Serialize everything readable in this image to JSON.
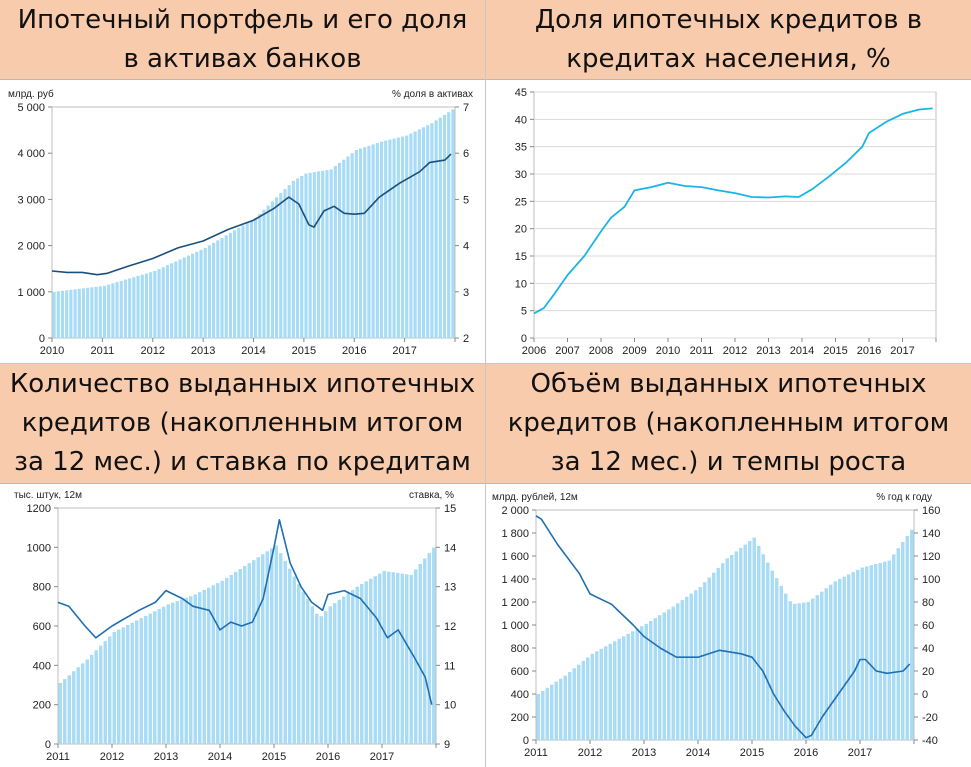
{
  "panels": {
    "p1": {
      "title": "Ипотечный портфель и его доля в активах банков"
    },
    "p2": {
      "title": "Доля ипотечных кредитов в кредитах населения, %"
    },
    "p3": {
      "title": "Количество выданных ипотечных кредитов (накопленным итогом за 12 мес.) и ставка по кредитам"
    },
    "p4": {
      "title": "Объём выданных ипотечных кредитов (накопленным итогом за 12 мес.) и темпы роста"
    }
  },
  "colors": {
    "bar": "#a8dcf4",
    "line_dark": "#1b4f7e",
    "line_mid": "#1f6fb2",
    "line_cyan": "#1ab5e6",
    "header_bg": "#f8cbad",
    "grid": "#d9d9d9"
  },
  "chart_data": [
    {
      "id": "p1",
      "type": "bar+line",
      "ylabel_left": "млрд. руб",
      "ylabel_right": "% доля в активах",
      "ylim_left": [
        0,
        5000
      ],
      "ylim_right": [
        2,
        7
      ],
      "yticks_left": [
        "0",
        "1 000",
        "2 000",
        "3 000",
        "4 000",
        "5 000"
      ],
      "yticks_right": [
        "2",
        "3",
        "4",
        "5",
        "6",
        "7"
      ],
      "x_start": 2010,
      "x_end": 2018,
      "xticks": [
        "2010",
        "2011",
        "2012",
        "2013",
        "2014",
        "2015",
        "2016",
        "2017"
      ],
      "bar_series": {
        "x": [
          2010.0,
          2011.0,
          2012.0,
          2013.0,
          2014.0,
          2014.75,
          2015.0,
          2015.5,
          2016.0,
          2016.5,
          2017.0,
          2017.5,
          2017.92
        ],
        "y": [
          1000,
          1130,
          1450,
          1950,
          2600,
          3400,
          3560,
          3650,
          4070,
          4250,
          4380,
          4650,
          4950
        ]
      },
      "line_series": {
        "x": [
          2010.0,
          2010.3,
          2010.6,
          2010.9,
          2011.1,
          2011.5,
          2012.0,
          2012.5,
          2013.0,
          2013.5,
          2014.0,
          2014.4,
          2014.7,
          2014.9,
          2015.1,
          2015.2,
          2015.4,
          2015.6,
          2015.8,
          2016.0,
          2016.2,
          2016.5,
          2016.9,
          2017.3,
          2017.5,
          2017.8,
          2017.92
        ],
        "y": [
          3.45,
          3.42,
          3.42,
          3.37,
          3.4,
          3.55,
          3.72,
          3.95,
          4.1,
          4.35,
          4.55,
          4.8,
          5.05,
          4.9,
          4.45,
          4.4,
          4.75,
          4.85,
          4.7,
          4.68,
          4.7,
          5.05,
          5.35,
          5.6,
          5.8,
          5.85,
          5.98
        ]
      }
    },
    {
      "id": "p2",
      "type": "line",
      "ylim": [
        0,
        45
      ],
      "yticks": [
        "0",
        "5",
        "10",
        "15",
        "20",
        "25",
        "30",
        "35",
        "40",
        "45"
      ],
      "x_start": 2006,
      "x_end": 2018,
      "xticks": [
        "2006",
        "2007",
        "2008",
        "2009",
        "2010",
        "2011",
        "2012",
        "2013",
        "2014",
        "2015",
        "2016",
        "2017"
      ],
      "line_series": {
        "x": [
          2006.0,
          2006.3,
          2006.6,
          2007.0,
          2007.5,
          2008.0,
          2008.3,
          2008.7,
          2009.0,
          2009.5,
          2010.0,
          2010.5,
          2011.0,
          2011.5,
          2012.0,
          2012.5,
          2013.0,
          2013.5,
          2013.9,
          2014.3,
          2014.8,
          2015.3,
          2015.8,
          2016.0,
          2016.5,
          2017.0,
          2017.5,
          2017.9
        ],
        "y": [
          4.5,
          5.5,
          8,
          11.5,
          15,
          19.5,
          22,
          24,
          27,
          27.6,
          28.4,
          27.8,
          27.6,
          27,
          26.5,
          25.8,
          25.7,
          25.9,
          25.8,
          27.2,
          29.5,
          32,
          35,
          37.5,
          39.5,
          41,
          41.8,
          42
        ]
      }
    },
    {
      "id": "p3",
      "type": "bar+line",
      "ylabel_left": "тыс. штук, 12м",
      "ylabel_right": "ставка, %",
      "ylim_left": [
        0,
        1200
      ],
      "ylim_right": [
        9,
        15
      ],
      "yticks_left": [
        "0",
        "200",
        "400",
        "600",
        "800",
        "1000",
        "1200"
      ],
      "yticks_right": [
        "9",
        "10",
        "11",
        "12",
        "13",
        "14",
        "15"
      ],
      "x_start": 2011,
      "x_end": 2018,
      "xticks": [
        "2011",
        "2012",
        "2013",
        "2014",
        "2015",
        "2016",
        "2017"
      ],
      "bar_series": {
        "x": [
          2011.0,
          2011.5,
          2012.0,
          2012.5,
          2013.0,
          2013.5,
          2014.0,
          2014.5,
          2015.0,
          2015.4,
          2015.8,
          2016.0,
          2016.5,
          2017.0,
          2017.5,
          2017.92
        ],
        "y": [
          310,
          430,
          570,
          640,
          710,
          760,
          830,
          920,
          1010,
          820,
          640,
          700,
          800,
          880,
          860,
          1000
        ]
      },
      "line_series": {
        "x": [
          2011.0,
          2011.2,
          2011.5,
          2011.7,
          2012.0,
          2012.5,
          2012.8,
          2013.0,
          2013.3,
          2013.5,
          2013.8,
          2014.0,
          2014.2,
          2014.4,
          2014.6,
          2014.8,
          2015.0,
          2015.1,
          2015.3,
          2015.5,
          2015.7,
          2015.9,
          2016.0,
          2016.3,
          2016.6,
          2016.9,
          2017.1,
          2017.3,
          2017.6,
          2017.8,
          2017.92
        ],
        "y": [
          12.6,
          12.5,
          12.0,
          11.7,
          12.0,
          12.4,
          12.6,
          12.9,
          12.7,
          12.5,
          12.4,
          11.9,
          12.1,
          12.0,
          12.1,
          12.7,
          14.0,
          14.7,
          13.6,
          13.0,
          12.6,
          12.4,
          12.8,
          12.9,
          12.7,
          12.2,
          11.7,
          11.9,
          11.2,
          10.7,
          10.0
        ]
      }
    },
    {
      "id": "p4",
      "type": "bar+line",
      "ylabel_left": "млрд. рублей, 12м",
      "ylabel_right": "% год к году",
      "ylim_left": [
        0,
        2000
      ],
      "ylim_right": [
        -40,
        160
      ],
      "yticks_left": [
        "0",
        "200",
        "400",
        "600",
        "800",
        "1 000",
        "1 200",
        "1 400",
        "1 600",
        "1 800",
        "2 000"
      ],
      "yticks_right": [
        "-40",
        "-20",
        "0",
        "20",
        "40",
        "60",
        "80",
        "100",
        "120",
        "140",
        "160"
      ],
      "x_start": 2011,
      "x_end": 2018,
      "xticks": [
        "2011",
        "2012",
        "2013",
        "2014",
        "2015",
        "2016",
        "2017"
      ],
      "bar_series": {
        "x": [
          2011.0,
          2011.5,
          2012.0,
          2012.5,
          2013.0,
          2013.5,
          2014.0,
          2014.5,
          2015.0,
          2015.3,
          2015.7,
          2016.0,
          2016.5,
          2017.0,
          2017.5,
          2017.92
        ],
        "y": [
          400,
          560,
          750,
          880,
          1010,
          1160,
          1330,
          1580,
          1760,
          1500,
          1180,
          1200,
          1380,
          1500,
          1560,
          1830
        ]
      },
      "line_series": {
        "x": [
          2011.0,
          2011.1,
          2011.4,
          2011.8,
          2012.0,
          2012.4,
          2012.8,
          2013.0,
          2013.3,
          2013.6,
          2014.0,
          2014.4,
          2014.8,
          2015.0,
          2015.2,
          2015.4,
          2015.6,
          2015.8,
          2016.0,
          2016.1,
          2016.3,
          2016.6,
          2016.9,
          2017.0,
          2017.1,
          2017.3,
          2017.5,
          2017.8,
          2017.92
        ],
        "y": [
          155,
          152,
          130,
          105,
          87,
          78,
          60,
          50,
          40,
          32,
          32,
          38,
          35,
          32,
          20,
          0,
          -15,
          -28,
          -38,
          -36,
          -20,
          0,
          20,
          30,
          30,
          20,
          18,
          20,
          26
        ]
      }
    }
  ]
}
